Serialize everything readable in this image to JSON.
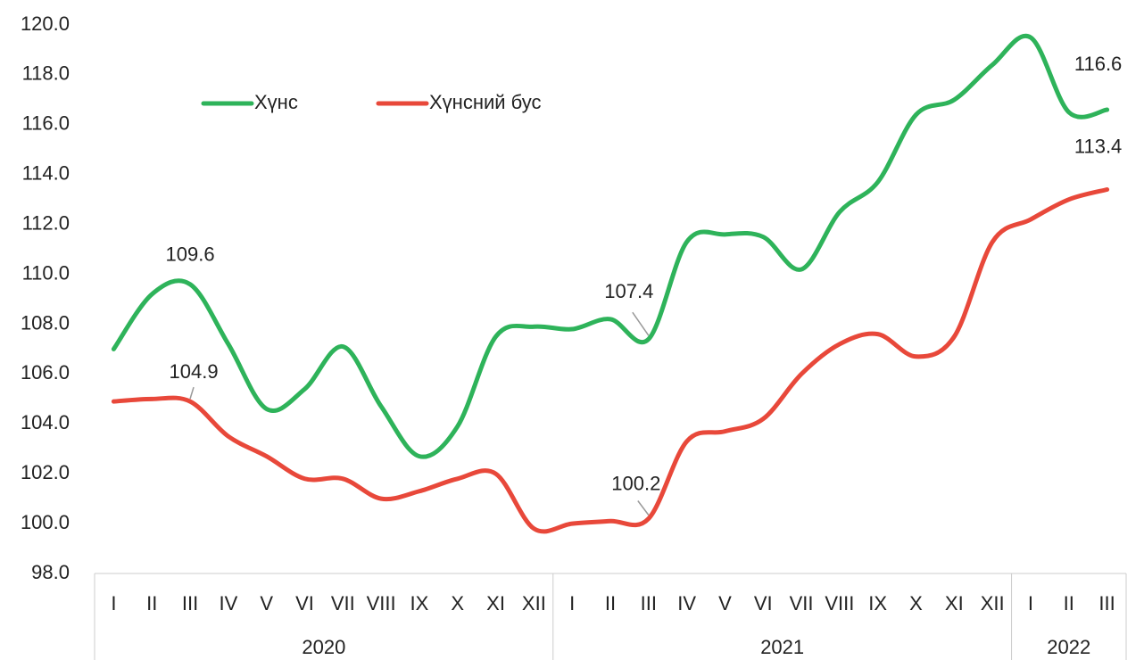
{
  "chart_data": {
    "type": "line",
    "groups": [
      {
        "name": "2020",
        "categories": [
          "I",
          "II",
          "III",
          "IV",
          "V",
          "VI",
          "VII",
          "VIII",
          "IX",
          "X",
          "XI",
          "XII"
        ]
      },
      {
        "name": "2021",
        "categories": [
          "I",
          "II",
          "III",
          "IV",
          "V",
          "VI",
          "VII",
          "VIII",
          "IX",
          "X",
          "XI",
          "XII"
        ]
      },
      {
        "name": "2022",
        "categories": [
          "I",
          "II",
          "III"
        ]
      }
    ],
    "series": [
      {
        "name": "Хүнс",
        "color": "#2eb35a",
        "values": [
          107.0,
          109.2,
          109.6,
          107.2,
          104.6,
          105.4,
          107.1,
          104.7,
          102.7,
          103.9,
          107.5,
          107.9,
          107.8,
          108.2,
          107.4,
          111.3,
          111.6,
          111.5,
          110.2,
          112.5,
          113.7,
          116.4,
          117.0,
          118.4,
          119.5,
          116.5,
          116.6
        ],
        "value_labels": [
          null,
          null,
          "109.6",
          null,
          null,
          null,
          null,
          null,
          null,
          null,
          null,
          null,
          null,
          null,
          "107.4",
          null,
          null,
          null,
          null,
          null,
          null,
          null,
          null,
          null,
          null,
          null,
          "116.6"
        ]
      },
      {
        "name": "Хүнсний бус",
        "color": "#e8483a",
        "values": [
          104.9,
          105.0,
          104.9,
          103.5,
          102.7,
          101.8,
          101.8,
          101.0,
          101.3,
          101.8,
          102.0,
          99.8,
          100.0,
          100.1,
          100.2,
          103.3,
          103.7,
          104.2,
          106.0,
          107.2,
          107.6,
          106.7,
          107.5,
          111.3,
          112.2,
          113.0,
          113.4
        ],
        "value_labels": [
          null,
          null,
          "104.9",
          null,
          null,
          null,
          null,
          null,
          null,
          null,
          null,
          null,
          null,
          null,
          "100.2",
          null,
          null,
          null,
          null,
          null,
          null,
          null,
          null,
          null,
          null,
          null,
          "113.4"
        ]
      }
    ],
    "ylim": [
      98,
      120
    ],
    "yticks": [
      {
        "value": 98,
        "label": "98.0"
      },
      {
        "value": 100,
        "label": "100.0"
      },
      {
        "value": 102,
        "label": "102.0"
      },
      {
        "value": 104,
        "label": "104.0"
      },
      {
        "value": 106,
        "label": "106.0"
      },
      {
        "value": 108,
        "label": "108.0"
      },
      {
        "value": 110,
        "label": "110.0"
      },
      {
        "value": 112,
        "label": "112.0"
      },
      {
        "value": 114,
        "label": "114.0"
      },
      {
        "value": 116,
        "label": "116.0"
      },
      {
        "value": 118,
        "label": "118.0"
      },
      {
        "value": 120,
        "label": "120.0"
      }
    ],
    "grid": false,
    "legend": "top"
  }
}
